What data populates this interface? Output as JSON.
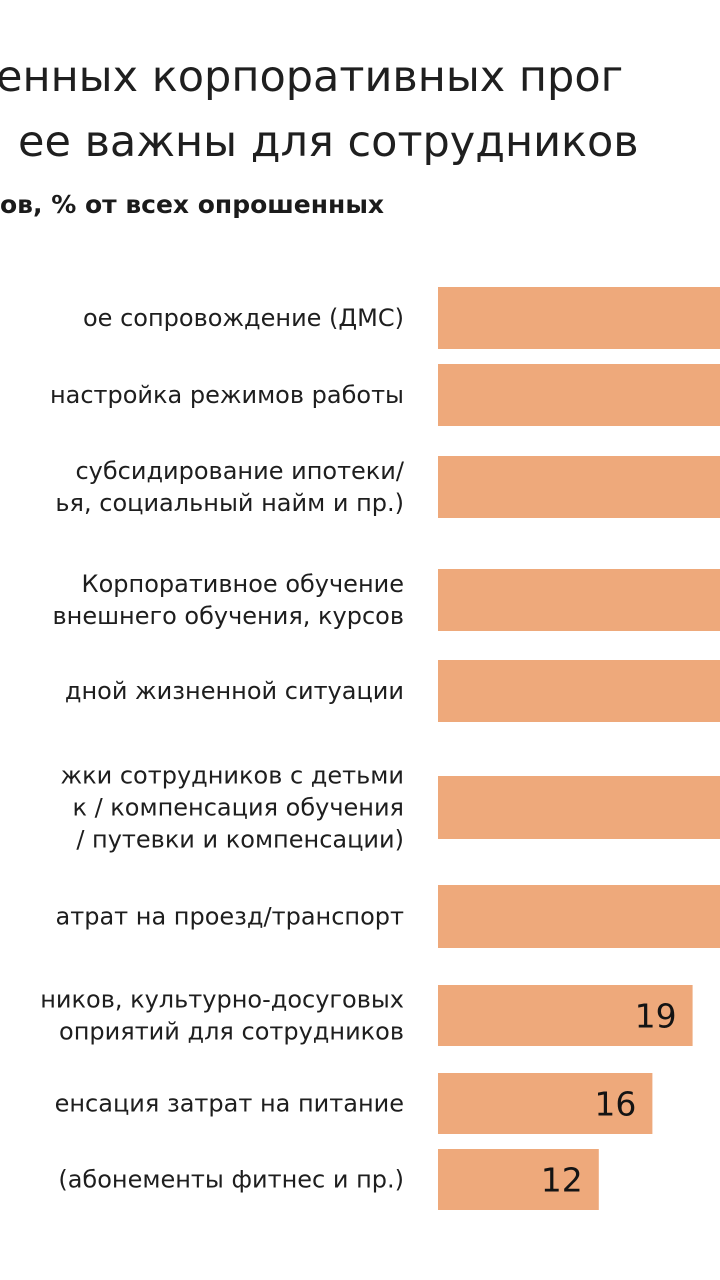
{
  "title": {
    "line1": "енных корпоративных прог",
    "line2": "ее важны для сотрудников"
  },
  "subtitle": "ов, % от всех опрошенных",
  "chart_data": {
    "type": "bar",
    "orientation": "horizontal",
    "categories": [
      [
        "ое сопровождение (ДМС)"
      ],
      [
        "настройка режимов работы"
      ],
      [
        "субсидирование ипотеки/",
        "ья, социальный найм и пр.)"
      ],
      [
        "Корпоративное обучение",
        "внешнего обучения, курсов"
      ],
      [
        "дной жизненной ситуации"
      ],
      [
        "жки сотрудников с детьми",
        "к / компенсация обучения",
        "/ путевки и компенсации)"
      ],
      [
        "атрат на проезд/транспорт"
      ],
      [
        "ников, культурно-досуговых",
        "оприятий для сотрудников"
      ],
      [
        "енсация затрат на питание"
      ],
      [
        "(абонементы фитнес и пр.)"
      ]
    ],
    "values": [
      null,
      null,
      null,
      null,
      null,
      null,
      null,
      19,
      16,
      12
    ],
    "value_labels": [
      "",
      "",
      "",
      "",
      "",
      "",
      "",
      "19",
      "16",
      "12"
    ],
    "bar_color": "#eea97b",
    "unit": "%"
  }
}
